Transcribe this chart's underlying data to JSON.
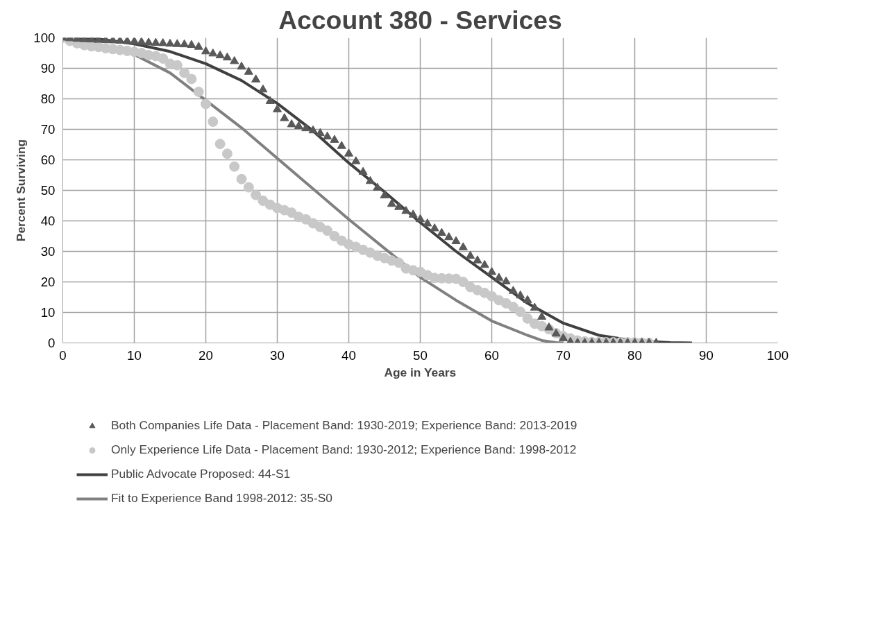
{
  "chart_data": {
    "type": "scatter",
    "title": "Account 380 - Services",
    "xlabel": "Age in Years",
    "ylabel": "Percent Surviving",
    "xlim": [
      0,
      100
    ],
    "xticks": [
      0,
      10,
      20,
      30,
      40,
      50,
      60,
      70,
      80,
      90,
      100
    ],
    "ylim": [
      0,
      100
    ],
    "yticks": [
      0,
      10,
      20,
      30,
      40,
      50,
      60,
      70,
      80,
      90,
      100
    ],
    "grid": true,
    "legend": "bottom",
    "series": [
      {
        "name": "Both Companies Life Data - Placement Band: 1930-2019; Experience Band: 2013-2019",
        "marker": "triangle",
        "color": "#595959",
        "x": [
          0,
          1,
          2,
          3,
          4,
          5,
          6,
          7,
          8,
          9,
          10,
          11,
          12,
          13,
          14,
          15,
          16,
          17,
          18,
          19,
          20,
          21,
          22,
          23,
          24,
          25,
          26,
          27,
          28,
          29,
          30,
          31,
          32,
          33,
          34,
          35,
          36,
          37,
          38,
          39,
          40,
          41,
          42,
          43,
          44,
          45,
          46,
          47,
          48,
          49,
          50,
          51,
          52,
          53,
          54,
          55,
          56,
          57,
          58,
          59,
          60,
          61,
          62,
          63,
          64,
          65,
          66,
          67,
          68,
          69,
          70,
          71,
          72,
          73,
          74,
          75,
          76,
          77,
          78,
          79,
          80,
          81,
          82,
          83
        ],
        "values": [
          100,
          99.8,
          99.6,
          99.5,
          99.4,
          99.3,
          99.2,
          99.1,
          99,
          98.9,
          98.8,
          98.6,
          98.4,
          98.3,
          98.2,
          98,
          97.9,
          97.8,
          97.6,
          97,
          95.5,
          94.8,
          94.2,
          93.5,
          92.3,
          90.5,
          88.8,
          86.3,
          83,
          79.2,
          76.5,
          73.6,
          71.6,
          71,
          70.3,
          69.6,
          68.7,
          67.6,
          66.5,
          64.5,
          62,
          59.5,
          56,
          53,
          50.8,
          48.3,
          45.5,
          44.5,
          43.2,
          42,
          40.5,
          39.1,
          37.5,
          36,
          34.6,
          33.3,
          31.3,
          28.5,
          27,
          25.5,
          23.2,
          21.3,
          20.1,
          17,
          15.5,
          14,
          11.5,
          8.5,
          5,
          3,
          1.5,
          0.3,
          0,
          0,
          0,
          0,
          0,
          0,
          0,
          0,
          0,
          0,
          0,
          0
        ]
      },
      {
        "name": "Only Experience Life Data - Placement Band: 1930-2012; Experience Band: 1998-2012",
        "marker": "circle",
        "color": "#c8c8c8",
        "x": [
          0,
          1,
          2,
          3,
          4,
          5,
          6,
          7,
          8,
          9,
          10,
          11,
          12,
          13,
          14,
          15,
          16,
          17,
          18,
          19,
          20,
          21,
          22,
          23,
          24,
          25,
          26,
          27,
          28,
          29,
          30,
          31,
          32,
          33,
          34,
          35,
          36,
          37,
          38,
          39,
          40,
          41,
          42,
          43,
          44,
          45,
          46,
          47,
          48,
          49,
          50,
          51,
          52,
          53,
          54,
          55,
          56,
          57,
          58,
          59,
          60,
          61,
          62,
          63,
          64,
          65,
          66,
          67,
          68,
          69,
          70,
          71,
          72,
          73,
          74,
          75,
          76,
          77,
          78,
          79,
          80,
          81,
          82
        ],
        "values": [
          100,
          99,
          98.2,
          97.6,
          97.2,
          97,
          96.6,
          96.3,
          96,
          95.7,
          95.4,
          95,
          94.3,
          94,
          93.2,
          91.5,
          91,
          88.5,
          86.5,
          82.3,
          78.3,
          72.5,
          65.2,
          62,
          57.8,
          53.7,
          51,
          48.5,
          46.6,
          45.3,
          44.2,
          43.5,
          42.7,
          41.3,
          40.5,
          39.2,
          38,
          36.8,
          35,
          33.5,
          32.3,
          31.5,
          30.5,
          29.6,
          28.6,
          27.8,
          27,
          26.3,
          24.4,
          23.8,
          23.3,
          22.2,
          21.3,
          21.2,
          21.1,
          21,
          20,
          18.3,
          17.3,
          16.4,
          15.3,
          14,
          13,
          11.8,
          10.2,
          8,
          6.3,
          5.5,
          4.5,
          3.2,
          2.2,
          1.5,
          0.8,
          0.5,
          0.3,
          0.3,
          0.2,
          0.2,
          0.2,
          0.2,
          0.2,
          0.1,
          0
        ]
      },
      {
        "name": "Public Advocate Proposed: 44-S1",
        "type": "line",
        "color": "#404040",
        "x": [
          0,
          5,
          10,
          15,
          20,
          25,
          30,
          35,
          40,
          45,
          50,
          55,
          60,
          65,
          70,
          75,
          80,
          85,
          88
        ],
        "values": [
          100,
          99.6,
          98,
          95.5,
          91.5,
          86,
          78.5,
          69.5,
          59,
          49.5,
          39.5,
          30,
          21.5,
          13,
          6.5,
          2.5,
          0.7,
          0.1,
          0
        ]
      },
      {
        "name": "Fit to Experience Band 1998-2012: 35-S0",
        "type": "line",
        "color": "#808080",
        "x": [
          0,
          5,
          10,
          15,
          20,
          25,
          30,
          35,
          40,
          45,
          50,
          55,
          60,
          65,
          67,
          69,
          70
        ],
        "values": [
          100,
          98,
          94.5,
          88.5,
          79.5,
          70.5,
          60.5,
          50.5,
          40.5,
          31,
          21.5,
          14,
          7.2,
          2.5,
          0.8,
          0.1,
          0
        ]
      }
    ]
  }
}
